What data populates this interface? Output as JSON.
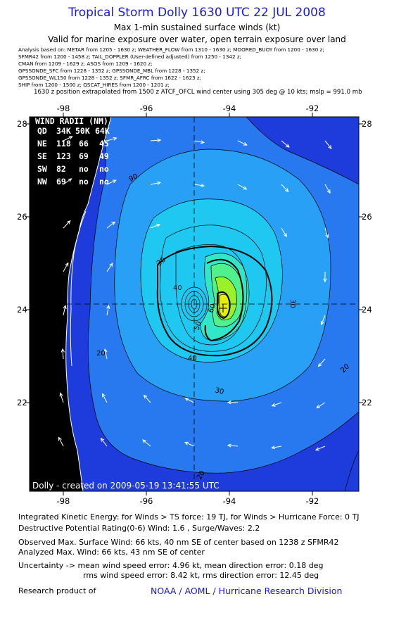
{
  "header": {
    "title": "Tropical Storm Dolly 1630 UTC 22 JUL 2008",
    "subtitle1": "Max 1-min sustained surface winds (kt)",
    "subtitle2": "Valid for marine exposure over water, open terrain exposure over land"
  },
  "sources": [
    "Analysis based on:  METAR from 1205 - 1630 z;  WEATHER_FLOW from 1310 - 1630 z;  MOORED_BUOY from 1200 - 1630 z;",
    "SFMR42 from 1200 - 1458 z;  TAIL_DOPPLER  (User-defined adjusted) from 1250 - 1342 z;",
    "CMAN from 1209 - 1629 z;  ASOS from 1209 - 1620 z;",
    "GPSSONDE_SFC from 1228 - 1352 z;  GPSSONDE_MBL from 1228 - 1352 z;",
    "GPSSONDE_WL150 from 1228 - 1352 z;  SFMR_AFRC from 1622 - 1623 z;",
    "SHIP from 1200 - 1500 z;  QSCAT_HIRES from 1200 - 1201 z;"
  ],
  "position_note": "1630 z position extrapolated from 1500 z ATCF_OFCL wind center using 305 deg @ 10 kts; mslp = 991.0 mb",
  "map": {
    "lon_labels": [
      "-98",
      "-96",
      "-94",
      "-92"
    ],
    "lat_labels": [
      "28",
      "26",
      "24",
      "22"
    ],
    "contour_labels": [
      "90",
      "90",
      "20",
      "20",
      "20",
      "20",
      "30",
      "30",
      "30",
      "40",
      "40",
      "50",
      "60"
    ],
    "credit": "Dolly - created on 2009-05-19 13:41:55 UTC",
    "center_lon": -93.9,
    "center_lat": 24.1,
    "wind_radii": {
      "title": "WIND RADII (NM)",
      "header": [
        "QD",
        "34K",
        "50K",
        "64K"
      ],
      "rows": [
        [
          "NE",
          "118",
          "66",
          "45"
        ],
        [
          "SE",
          "123",
          "69",
          "49"
        ],
        [
          "SW",
          "82",
          "no",
          "no"
        ],
        [
          "NW",
          "69",
          "no",
          "no"
        ]
      ]
    },
    "colors": {
      "background": "#1e3cdc",
      "level_20": "#2878f0",
      "level_30": "#28a0f5",
      "level_40": "#1ec8f0",
      "level_50": "#32e6c8",
      "level_55": "#50f08c",
      "level_60": "#9cf028",
      "level_64": "#e6f000",
      "land": "#000000"
    }
  },
  "info": {
    "ike": "Integrated Kinetic Energy:  for Winds > TS force: 19 TJ,  for Winds > Hurricane Force: 0 TJ",
    "dpr": "Destructive Potential Rating(0-6)   Wind: 1.6 , Surge/Waves: 2.2",
    "obs_max": "Observed Max. Surface Wind: 66 kts, 40 nm SE of center based on 1238 z SFMR42",
    "ana_max": "Analyzed Max. Wind: 66 kts, 43 nm SE of center",
    "unc1": "Uncertainty -> mean wind speed error: 4.96 kt,   mean direction error: 0.18 deg",
    "unc2": "rms wind speed error: 8.42 kt,   rms direction error: 12.45 deg",
    "research": "Research product of",
    "org": "NOAA / AOML / Hurricane Research Division"
  }
}
